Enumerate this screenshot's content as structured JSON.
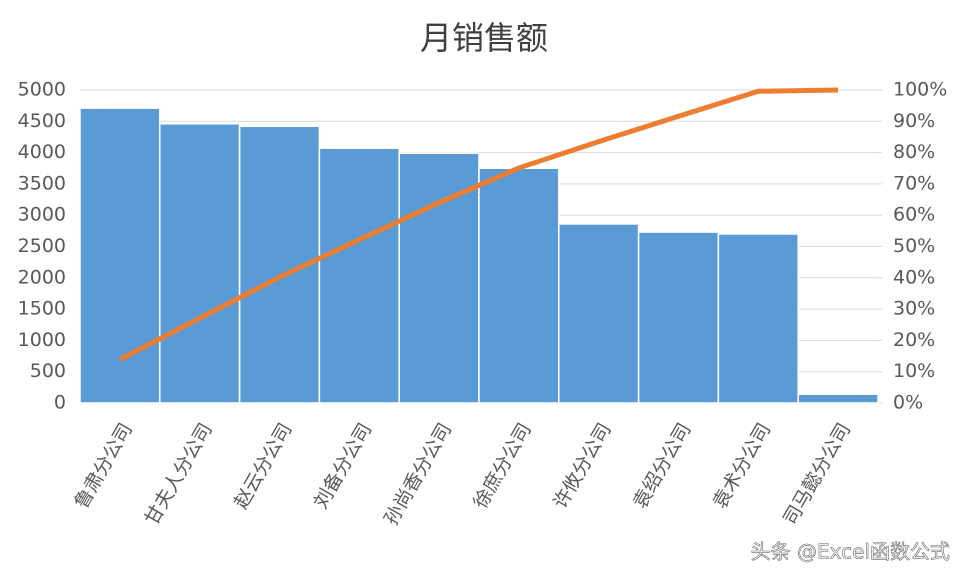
{
  "chart_data": {
    "type": "pareto",
    "title": "月销售额",
    "categories": [
      "鲁肃分公司",
      "甘夫人分公司",
      "赵云分公司",
      "刘备分公司",
      "孙尚香分公司",
      "徐庶分公司",
      "许攸分公司",
      "袁绍分公司",
      "袁术分公司",
      "司马懿分公司"
    ],
    "series": [
      {
        "color": "#5b9bd5",
        "values": [
          4710,
          4460,
          4420,
          4070,
          3990,
          3750,
          2860,
          2730,
          2700,
          140
        ]
      },
      {
        "color": "#ed7d31",
        "axis": "y2",
        "values": [
          13.9,
          27.1,
          40.2,
          52.2,
          64.0,
          75.1,
          83.5,
          91.6,
          99.6,
          100
        ]
      }
    ],
    "ylim": [
      0,
      5000
    ],
    "yticks": [
      0,
      500,
      1000,
      1500,
      2000,
      2500,
      3000,
      3500,
      4000,
      4500,
      5000
    ],
    "y2lim": [
      0,
      100
    ],
    "y2ticks": [
      {
        "value": 0,
        "label": "0%"
      },
      {
        "value": 10,
        "label": "10%"
      },
      {
        "value": 20,
        "label": "20%"
      },
      {
        "value": 30,
        "label": "30%"
      },
      {
        "value": 40,
        "label": "40%"
      },
      {
        "value": 50,
        "label": "50%"
      },
      {
        "value": 60,
        "label": "60%"
      },
      {
        "value": 70,
        "label": "70%"
      },
      {
        "value": 80,
        "label": "80%"
      },
      {
        "value": 90,
        "label": "90%"
      },
      {
        "value": 100,
        "label": "100%"
      }
    ],
    "grid": true,
    "watermark": "头条 @Excel函数公式"
  }
}
